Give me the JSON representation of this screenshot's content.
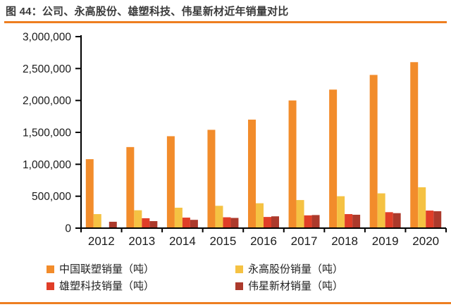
{
  "header": {
    "title": "图 44：公司、永高股份、雄塑科技、伟星新材近年销量对比"
  },
  "accent_color": "#ee7e20",
  "chart_data": {
    "type": "bar",
    "title": "",
    "xlabel": "",
    "ylabel": "",
    "categories": [
      "2012",
      "2013",
      "2014",
      "2015",
      "2016",
      "2017",
      "2018",
      "2019",
      "2020"
    ],
    "series": [
      {
        "name": "中国联塑销量（吨）",
        "color": "#f28c2b",
        "values": [
          1080000,
          1270000,
          1440000,
          1540000,
          1700000,
          2000000,
          2170000,
          2400000,
          2600000
        ]
      },
      {
        "name": "永高股份销量（吨）",
        "color": "#f5c243",
        "values": [
          220000,
          280000,
          320000,
          350000,
          390000,
          440000,
          500000,
          545000,
          640000
        ]
      },
      {
        "name": "雄塑科技销量（吨）",
        "color": "#e03e28",
        "values": [
          null,
          155000,
          165000,
          170000,
          175000,
          200000,
          220000,
          250000,
          275000
        ]
      },
      {
        "name": "伟星新材销量（吨）",
        "color": "#ac3a2c",
        "values": [
          100000,
          110000,
          130000,
          160000,
          185000,
          205000,
          210000,
          235000,
          265000
        ]
      }
    ],
    "ylim": [
      0,
      3000000
    ],
    "ytick_step": 500000,
    "ytick_labels": [
      "0",
      "500,000",
      "1,000,000",
      "1,500,000",
      "2,000,000",
      "2,500,000",
      "3,000,000"
    ],
    "grid": false,
    "legend_position": "bottom"
  }
}
